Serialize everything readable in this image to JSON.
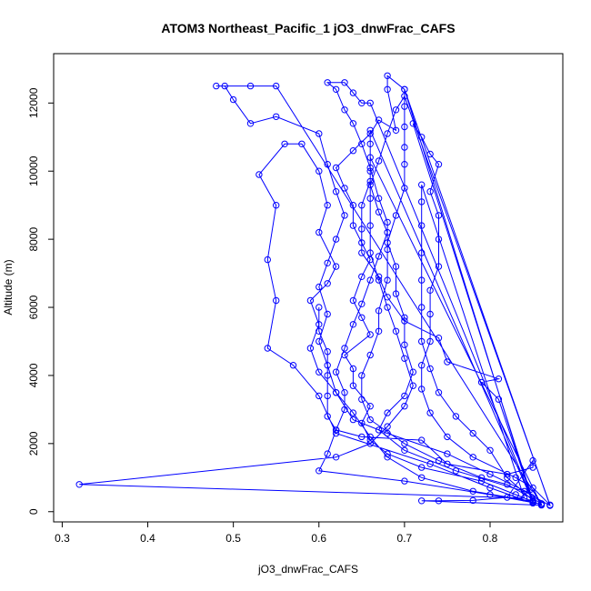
{
  "chart_data": {
    "type": "scatter",
    "title": "ATOM3 Northeast_Pacific_1 jO3_dnwFrac_CAFS",
    "xlabel": "jO3_dnwFrac_CAFS",
    "ylabel": "Altitude (m)",
    "xlim": [
      0.29,
      0.885
    ],
    "ylim": [
      -300,
      13450
    ],
    "x_ticks": [
      0.3,
      0.4,
      0.5,
      0.6,
      0.7,
      0.8
    ],
    "x_tick_labels": [
      "0.3",
      "0.4",
      "0.5",
      "0.6",
      "0.7",
      "0.8"
    ],
    "y_ticks": [
      0,
      2000,
      4000,
      6000,
      8000,
      10000,
      12000
    ],
    "y_tick_labels": [
      "0",
      "2000",
      "4000",
      "6000",
      "8000",
      "10000",
      "12000"
    ],
    "grid": false,
    "legend": "none",
    "series": [
      {
        "color": "#0000ff",
        "marker": "open-circle",
        "line": true,
        "points": [
          [
            0.86,
            200
          ],
          [
            0.83,
            500
          ],
          [
            0.79,
            900
          ],
          [
            0.72,
            1300
          ],
          [
            0.68,
            1700
          ],
          [
            0.66,
            2100
          ],
          [
            0.65,
            2600
          ],
          [
            0.66,
            3100
          ],
          [
            0.64,
            3700
          ],
          [
            0.64,
            4200
          ],
          [
            0.63,
            4600
          ],
          [
            0.66,
            5200
          ],
          [
            0.65,
            5700
          ],
          [
            0.64,
            6200
          ],
          [
            0.65,
            6900
          ],
          [
            0.66,
            7400
          ],
          [
            0.65,
            7900
          ],
          [
            0.64,
            8400
          ],
          [
            0.64,
            9000
          ],
          [
            0.63,
            9500
          ],
          [
            0.62,
            10100
          ],
          [
            0.64,
            10600
          ],
          [
            0.66,
            11100
          ],
          [
            0.67,
            11500
          ],
          [
            0.69,
            11200
          ],
          [
            0.68,
            12400
          ],
          [
            0.68,
            12800
          ],
          [
            0.7,
            12400
          ],
          [
            0.87,
            180
          ],
          [
            0.84,
            600
          ],
          [
            0.76,
            1200
          ],
          [
            0.7,
            1800
          ],
          [
            0.67,
            2400
          ],
          [
            0.68,
            2900
          ],
          [
            0.7,
            3400
          ],
          [
            0.71,
            4100
          ],
          [
            0.7,
            4900
          ],
          [
            0.7,
            5700
          ],
          [
            0.69,
            6400
          ],
          [
            0.69,
            7200
          ],
          [
            0.68,
            7900
          ],
          [
            0.69,
            8700
          ],
          [
            0.7,
            9500
          ],
          [
            0.7,
            10200
          ],
          [
            0.7,
            10700
          ],
          [
            0.7,
            11300
          ],
          [
            0.7,
            11900
          ],
          [
            0.7,
            12400
          ],
          [
            0.85,
            250
          ],
          [
            0.8,
            700
          ],
          [
            0.73,
            1400
          ],
          [
            0.62,
            2300
          ],
          [
            0.6,
            3400
          ],
          [
            0.57,
            4300
          ],
          [
            0.54,
            4800
          ],
          [
            0.55,
            6200
          ],
          [
            0.54,
            7400
          ],
          [
            0.55,
            9000
          ],
          [
            0.53,
            9900
          ],
          [
            0.56,
            10800
          ],
          [
            0.58,
            10800
          ],
          [
            0.6,
            10000
          ],
          [
            0.61,
            9000
          ],
          [
            0.6,
            8200
          ],
          [
            0.62,
            7200
          ],
          [
            0.61,
            6700
          ],
          [
            0.59,
            6200
          ],
          [
            0.6,
            5500
          ],
          [
            0.59,
            4800
          ],
          [
            0.6,
            4100
          ],
          [
            0.62,
            3500
          ],
          [
            0.64,
            2700
          ],
          [
            0.68,
            2300
          ],
          [
            0.75,
            1700
          ],
          [
            0.8,
            1100
          ],
          [
            0.85,
            500
          ],
          [
            0.86,
            240
          ],
          [
            0.82,
            800
          ],
          [
            0.79,
            1000
          ],
          [
            0.74,
            1500
          ],
          [
            0.7,
            2000
          ],
          [
            0.66,
            2700
          ],
          [
            0.65,
            3300
          ],
          [
            0.65,
            4000
          ],
          [
            0.66,
            4600
          ],
          [
            0.67,
            5300
          ],
          [
            0.67,
            5900
          ],
          [
            0.68,
            6800
          ],
          [
            0.68,
            7700
          ],
          [
            0.68,
            8500
          ],
          [
            0.67,
            9200
          ],
          [
            0.66,
            10100
          ],
          [
            0.65,
            10800
          ],
          [
            0.64,
            11400
          ],
          [
            0.63,
            11800
          ],
          [
            0.62,
            12400
          ],
          [
            0.61,
            12600
          ],
          [
            0.63,
            12600
          ],
          [
            0.64,
            12300
          ],
          [
            0.65,
            12000
          ],
          [
            0.66,
            12000
          ],
          [
            0.85,
            300
          ],
          [
            0.78,
            600
          ],
          [
            0.72,
            1000
          ],
          [
            0.68,
            1600
          ],
          [
            0.66,
            2200
          ],
          [
            0.64,
            2900
          ],
          [
            0.62,
            3500
          ],
          [
            0.61,
            4300
          ],
          [
            0.6,
            5000
          ],
          [
            0.61,
            5800
          ],
          [
            0.6,
            6600
          ],
          [
            0.61,
            7300
          ],
          [
            0.62,
            8000
          ],
          [
            0.63,
            8700
          ],
          [
            0.62,
            9400
          ],
          [
            0.61,
            10200
          ],
          [
            0.6,
            11100
          ],
          [
            0.55,
            11600
          ],
          [
            0.52,
            11400
          ],
          [
            0.5,
            12100
          ],
          [
            0.49,
            12500
          ],
          [
            0.48,
            12500
          ],
          [
            0.52,
            12500
          ],
          [
            0.55,
            12500
          ],
          [
            0.86,
            220
          ],
          [
            0.8,
            500
          ],
          [
            0.7,
            900
          ],
          [
            0.6,
            1200
          ],
          [
            0.61,
            1700
          ],
          [
            0.62,
            2400
          ],
          [
            0.63,
            3000
          ],
          [
            0.63,
            3500
          ],
          [
            0.62,
            4100
          ],
          [
            0.63,
            4800
          ],
          [
            0.64,
            5500
          ],
          [
            0.65,
            6100
          ],
          [
            0.66,
            6800
          ],
          [
            0.67,
            7500
          ],
          [
            0.68,
            8200
          ],
          [
            0.67,
            8800
          ],
          [
            0.66,
            9600
          ],
          [
            0.67,
            10300
          ],
          [
            0.68,
            11100
          ],
          [
            0.69,
            11800
          ],
          [
            0.7,
            12200
          ],
          [
            0.87,
            200
          ],
          [
            0.85,
            700
          ],
          [
            0.83,
            1000
          ],
          [
            0.78,
            1600
          ],
          [
            0.75,
            2200
          ],
          [
            0.73,
            2900
          ],
          [
            0.72,
            3600
          ],
          [
            0.72,
            4300
          ],
          [
            0.73,
            5000
          ],
          [
            0.73,
            5800
          ],
          [
            0.73,
            6500
          ],
          [
            0.74,
            7200
          ],
          [
            0.74,
            8000
          ],
          [
            0.74,
            8700
          ],
          [
            0.73,
            9400
          ],
          [
            0.74,
            10200
          ],
          [
            0.73,
            10500
          ],
          [
            0.72,
            11000
          ],
          [
            0.71,
            11400
          ],
          [
            0.85,
            330
          ],
          [
            0.82,
            1000
          ],
          [
            0.8,
            1800
          ],
          [
            0.78,
            2300
          ],
          [
            0.76,
            2800
          ],
          [
            0.74,
            3500
          ],
          [
            0.73,
            4200
          ],
          [
            0.72,
            5000
          ],
          [
            0.72,
            6000
          ],
          [
            0.72,
            6800
          ],
          [
            0.72,
            7600
          ],
          [
            0.72,
            8400
          ],
          [
            0.72,
            9100
          ],
          [
            0.72,
            9600
          ],
          [
            0.84,
            400
          ],
          [
            0.32,
            800
          ],
          [
            0.62,
            1600
          ],
          [
            0.66,
            2000
          ],
          [
            0.68,
            2500
          ],
          [
            0.7,
            3100
          ],
          [
            0.71,
            3700
          ],
          [
            0.7,
            4500
          ],
          [
            0.69,
            5300
          ],
          [
            0.68,
            6000
          ],
          [
            0.67,
            6800
          ],
          [
            0.66,
            7600
          ],
          [
            0.66,
            8400
          ],
          [
            0.66,
            9200
          ],
          [
            0.66,
            10000
          ],
          [
            0.66,
            10800
          ],
          [
            0.66,
            11200
          ],
          [
            0.85,
            280
          ],
          [
            0.81,
            3300
          ],
          [
            0.79,
            3800
          ],
          [
            0.81,
            3900
          ],
          [
            0.75,
            4400
          ],
          [
            0.74,
            5100
          ],
          [
            0.7,
            5600
          ],
          [
            0.68,
            6300
          ],
          [
            0.67,
            6900
          ],
          [
            0.65,
            7600
          ],
          [
            0.65,
            8300
          ],
          [
            0.65,
            9000
          ],
          [
            0.66,
            9700
          ],
          [
            0.66,
            10400
          ],
          [
            0.86,
            190
          ],
          [
            0.72,
            320
          ],
          [
            0.74,
            320
          ],
          [
            0.78,
            330
          ],
          [
            0.82,
            420
          ],
          [
            0.85,
            1500
          ],
          [
            0.85,
            1300
          ],
          [
            0.82,
            1100
          ],
          [
            0.75,
            1400
          ],
          [
            0.72,
            2100
          ],
          [
            0.65,
            2200
          ],
          [
            0.62,
            2400
          ],
          [
            0.61,
            2800
          ],
          [
            0.61,
            3400
          ],
          [
            0.61,
            4000
          ],
          [
            0.61,
            4700
          ],
          [
            0.6,
            5300
          ],
          [
            0.6,
            6000
          ]
        ]
      }
    ]
  }
}
